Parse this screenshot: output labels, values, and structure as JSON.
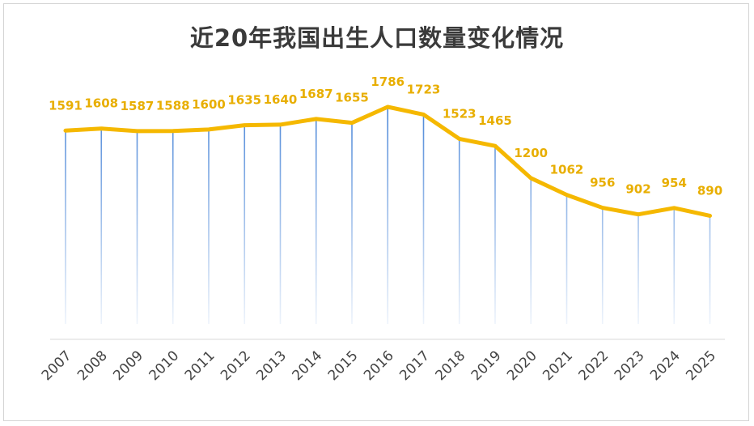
{
  "chart_data": {
    "type": "line",
    "title": "近20年我国出生人口数量变化情况",
    "categories": [
      "2007",
      "2008",
      "2009",
      "2010",
      "2011",
      "2012",
      "2013",
      "2014",
      "2015",
      "2016",
      "2017",
      "2018",
      "2019",
      "2020",
      "2021",
      "2022",
      "2023",
      "2024",
      "2025"
    ],
    "series": [
      {
        "values": [
          1591,
          1608,
          1587,
          1588,
          1600,
          1635,
          1640,
          1687,
          1655,
          1786,
          1723,
          1523,
          1465,
          1200,
          1062,
          956,
          902,
          954,
          890
        ]
      }
    ],
    "ylim": [
      0,
      2000
    ],
    "grid": false,
    "legend": "none",
    "colors": {
      "line": "#F5B800",
      "label": "#E8AE00",
      "drop_line": "#4A86D8",
      "axis": "#d9d9d9"
    }
  }
}
